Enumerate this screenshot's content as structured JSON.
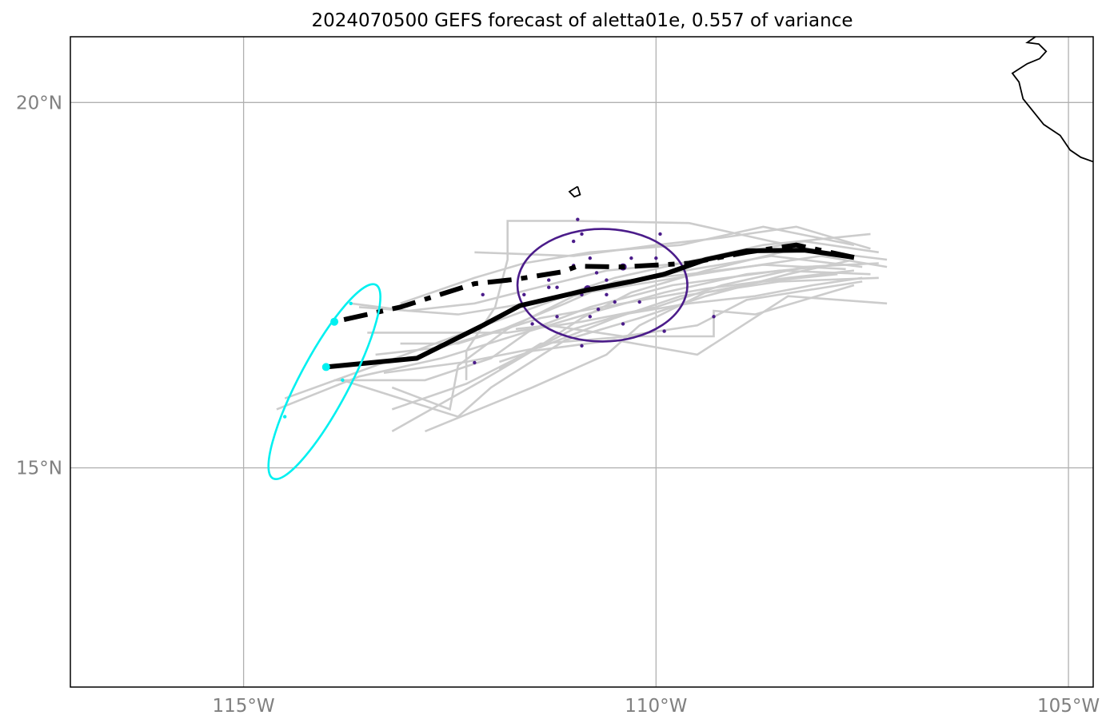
{
  "chart_data": {
    "type": "map-track",
    "title": "2024070500 GEFS forecast of aletta01e, 0.557 of variance",
    "projection": "PlateCarree",
    "xlim": [
      -117.1,
      -104.7
    ],
    "ylim": [
      12.0,
      20.9
    ],
    "lon_ticks": [
      {
        "value": -115,
        "label": "115°W"
      },
      {
        "value": -110,
        "label": "110°W"
      },
      {
        "value": -105,
        "label": "105°W"
      }
    ],
    "lat_ticks": [
      {
        "value": 20,
        "label": "20°N"
      },
      {
        "value": 15,
        "label": "15°N"
      }
    ],
    "grid": true,
    "colors": {
      "member": "#cccccc",
      "mid_points": "#4b1c8a",
      "end_points": "#00f0f0",
      "track": "#000000",
      "coast": "#000000",
      "grid": "#b0b0b0",
      "tick_label": "#808080"
    },
    "coastline": [
      [
        [
          -105.4,
          20.9
        ],
        [
          -105.5,
          20.82
        ],
        [
          -105.36,
          20.8
        ],
        [
          -105.27,
          20.7
        ],
        [
          -105.35,
          20.6
        ],
        [
          -105.5,
          20.53
        ],
        [
          -105.68,
          20.4
        ],
        [
          -105.6,
          20.28
        ],
        [
          -105.55,
          20.05
        ],
        [
          -105.3,
          19.7
        ],
        [
          -105.1,
          19.55
        ],
        [
          -104.98,
          19.35
        ],
        [
          -104.85,
          19.25
        ],
        [
          -104.7,
          19.19
        ]
      ]
    ],
    "islands": [
      [
        [
          -110.95,
          18.85
        ],
        [
          -111.05,
          18.78
        ],
        [
          -110.99,
          18.71
        ],
        [
          -110.92,
          18.74
        ],
        [
          -110.95,
          18.85
        ]
      ]
    ],
    "ensemble_mean_track": [
      [
        -107.6,
        17.88
      ],
      [
        -108.2,
        17.98
      ],
      [
        -108.9,
        17.97
      ],
      [
        -109.4,
        17.85
      ],
      [
        -109.9,
        17.65
      ],
      [
        -110.3,
        17.55
      ],
      [
        -110.85,
        17.43
      ],
      [
        -111.65,
        17.22
      ],
      [
        -112.1,
        16.95
      ],
      [
        -112.9,
        16.5
      ],
      [
        -114.0,
        16.38
      ]
    ],
    "forecast_track": [
      [
        -107.6,
        17.88
      ],
      [
        -108.3,
        18.05
      ],
      [
        -108.9,
        17.95
      ],
      [
        -109.6,
        17.8
      ],
      [
        -110.4,
        17.75
      ],
      [
        -110.95,
        17.76
      ],
      [
        -111.15,
        17.68
      ],
      [
        -111.7,
        17.58
      ],
      [
        -112.2,
        17.52
      ],
      [
        -113.1,
        17.2
      ],
      [
        -113.9,
        17.0
      ]
    ],
    "members": [
      [
        [
          -107.2,
          17.75
        ],
        [
          -108.0,
          17.9
        ],
        [
          -109.2,
          17.7
        ],
        [
          -110.3,
          17.5
        ],
        [
          -111.1,
          17.35
        ],
        [
          -112.2,
          16.9
        ],
        [
          -113.4,
          16.4
        ],
        [
          -114.5,
          15.95
        ]
      ],
      [
        [
          -107.3,
          17.95
        ],
        [
          -108.2,
          18.1
        ],
        [
          -109.5,
          17.85
        ],
        [
          -110.5,
          17.6
        ],
        [
          -111.3,
          17.3
        ],
        [
          -112.4,
          17.1
        ],
        [
          -113.6,
          17.2
        ]
      ],
      [
        [
          -107.4,
          17.65
        ],
        [
          -108.5,
          17.7
        ],
        [
          -109.8,
          17.5
        ],
        [
          -110.8,
          17.2
        ],
        [
          -111.5,
          16.9
        ],
        [
          -112.0,
          16.5
        ],
        [
          -112.8,
          16.2
        ],
        [
          -113.9,
          16.2
        ]
      ],
      [
        [
          -107.5,
          17.75
        ],
        [
          -108.6,
          17.9
        ],
        [
          -109.9,
          17.65
        ],
        [
          -111.0,
          17.35
        ],
        [
          -111.8,
          16.9
        ],
        [
          -112.4,
          16.4
        ],
        [
          -112.5,
          15.8
        ],
        [
          -113.2,
          16.1
        ]
      ],
      [
        [
          -107.6,
          18.05
        ],
        [
          -108.7,
          18.3
        ],
        [
          -109.7,
          18.05
        ],
        [
          -110.8,
          17.95
        ],
        [
          -111.6,
          17.8
        ],
        [
          -112.2,
          17.6
        ],
        [
          -113.1,
          17.25
        ]
      ],
      [
        [
          -107.7,
          17.9
        ],
        [
          -108.6,
          18.1
        ],
        [
          -109.6,
          18.35
        ],
        [
          -111.0,
          18.38
        ],
        [
          -111.8,
          18.38
        ],
        [
          -111.8,
          17.85
        ],
        [
          -111.95,
          17.2
        ],
        [
          -112.3,
          16.6
        ],
        [
          -112.3,
          16.2
        ]
      ],
      [
        [
          -107.8,
          17.78
        ],
        [
          -108.9,
          17.65
        ],
        [
          -109.9,
          17.4
        ],
        [
          -110.7,
          17.15
        ],
        [
          -111.6,
          16.85
        ],
        [
          -112.6,
          16.5
        ],
        [
          -113.6,
          16.25
        ],
        [
          -114.6,
          15.8
        ]
      ],
      [
        [
          -107.2,
          17.85
        ],
        [
          -108.3,
          18.0
        ],
        [
          -109.4,
          17.7
        ],
        [
          -110.3,
          17.4
        ],
        [
          -110.9,
          17.05
        ],
        [
          -111.5,
          16.6
        ],
        [
          -112.1,
          16.2
        ],
        [
          -113.2,
          15.5
        ]
      ],
      [
        [
          -107.6,
          17.7
        ],
        [
          -108.4,
          17.6
        ],
        [
          -109.4,
          17.45
        ],
        [
          -110.4,
          17.25
        ],
        [
          -111.4,
          17.05
        ],
        [
          -112.4,
          16.7
        ],
        [
          -113.1,
          16.7
        ]
      ],
      [
        [
          -107.3,
          17.6
        ],
        [
          -108.5,
          17.55
        ],
        [
          -109.7,
          17.35
        ],
        [
          -110.5,
          17.05
        ],
        [
          -111.4,
          16.65
        ],
        [
          -112.3,
          16.45
        ],
        [
          -113.3,
          16.3
        ]
      ],
      [
        [
          -107.4,
          18.0
        ],
        [
          -108.3,
          18.3
        ],
        [
          -109.2,
          18.15
        ],
        [
          -110.0,
          18.05
        ],
        [
          -111.0,
          17.9
        ],
        [
          -112.2,
          17.95
        ]
      ],
      [
        [
          -107.5,
          17.6
        ],
        [
          -108.1,
          17.5
        ],
        [
          -108.8,
          17.35
        ],
        [
          -109.6,
          17.25
        ],
        [
          -110.4,
          17.1
        ],
        [
          -111.0,
          16.9
        ],
        [
          -111.6,
          16.55
        ],
        [
          -112.3,
          16.15
        ],
        [
          -113.2,
          15.8
        ]
      ],
      [
        [
          -107.6,
          17.85
        ],
        [
          -108.4,
          17.65
        ],
        [
          -109.4,
          17.35
        ],
        [
          -110.2,
          17.05
        ],
        [
          -111.1,
          16.75
        ],
        [
          -112.0,
          16.1
        ],
        [
          -112.4,
          15.7
        ],
        [
          -113.8,
          16.2
        ]
      ],
      [
        [
          -107.7,
          17.72
        ],
        [
          -108.7,
          17.78
        ],
        [
          -109.6,
          17.65
        ],
        [
          -110.5,
          17.55
        ],
        [
          -111.1,
          17.25
        ],
        [
          -111.85,
          16.9
        ],
        [
          -112.6,
          16.65
        ],
        [
          -113.4,
          16.55
        ]
      ],
      [
        [
          -107.3,
          17.8
        ],
        [
          -108.2,
          17.75
        ],
        [
          -109.2,
          17.5
        ],
        [
          -110.0,
          17.2
        ],
        [
          -110.9,
          17.0
        ],
        [
          -111.8,
          16.85
        ],
        [
          -112.5,
          16.85
        ],
        [
          -113.5,
          16.85
        ]
      ],
      [
        [
          -107.4,
          18.2
        ],
        [
          -108.7,
          18.05
        ],
        [
          -109.7,
          17.8
        ],
        [
          -110.6,
          17.7
        ],
        [
          -111.5,
          17.45
        ],
        [
          -112.2,
          17.25
        ],
        [
          -113.0,
          17.15
        ],
        [
          -113.7,
          17.25
        ]
      ],
      [
        [
          -107.5,
          17.55
        ],
        [
          -108.9,
          17.3
        ],
        [
          -109.5,
          16.95
        ],
        [
          -110.4,
          16.8
        ],
        [
          -111.3,
          16.95
        ],
        [
          -111.7,
          16.9
        ]
      ],
      [
        [
          -107.2,
          17.25
        ],
        [
          -108.4,
          17.35
        ],
        [
          -109.5,
          16.55
        ],
        [
          -110.5,
          16.75
        ],
        [
          -111.5,
          16.6
        ],
        [
          -111.9,
          16.45
        ]
      ],
      [
        [
          -107.6,
          17.5
        ],
        [
          -108.8,
          17.1
        ],
        [
          -109.3,
          17.15
        ],
        [
          -109.3,
          16.8
        ],
        [
          -110.3,
          16.8
        ],
        [
          -111.4,
          16.7
        ],
        [
          -111.9,
          16.35
        ]
      ],
      [
        [
          -107.8,
          17.65
        ],
        [
          -108.7,
          17.55
        ],
        [
          -109.4,
          17.4
        ],
        [
          -110.2,
          16.95
        ],
        [
          -110.6,
          16.55
        ],
        [
          -111.5,
          16.1
        ],
        [
          -112.8,
          15.5
        ]
      ]
    ],
    "mid_points": [
      {
        "lon": -110.95,
        "lat": 18.4,
        "size": 1
      },
      {
        "lon": -110.9,
        "lat": 18.2,
        "size": 1
      },
      {
        "lon": -111.0,
        "lat": 18.1,
        "size": 1
      },
      {
        "lon": -109.95,
        "lat": 18.2,
        "size": 1
      },
      {
        "lon": -110.8,
        "lat": 17.87,
        "size": 1
      },
      {
        "lon": -110.3,
        "lat": 17.87,
        "size": 1
      },
      {
        "lon": -110.0,
        "lat": 17.87,
        "size": 1
      },
      {
        "lon": -111.0,
        "lat": 17.77,
        "size": 1
      },
      {
        "lon": -110.72,
        "lat": 17.67,
        "size": 1
      },
      {
        "lon": -111.3,
        "lat": 17.57,
        "size": 1
      },
      {
        "lon": -110.6,
        "lat": 17.57,
        "size": 1
      },
      {
        "lon": -111.3,
        "lat": 17.47,
        "size": 1
      },
      {
        "lon": -111.2,
        "lat": 17.47,
        "size": 1
      },
      {
        "lon": -112.1,
        "lat": 17.37,
        "size": 1
      },
      {
        "lon": -111.6,
        "lat": 17.37,
        "size": 1
      },
      {
        "lon": -110.9,
        "lat": 17.37,
        "size": 1
      },
      {
        "lon": -110.6,
        "lat": 17.37,
        "size": 1
      },
      {
        "lon": -110.5,
        "lat": 17.27,
        "size": 1
      },
      {
        "lon": -110.2,
        "lat": 17.27,
        "size": 1
      },
      {
        "lon": -110.7,
        "lat": 17.17,
        "size": 1
      },
      {
        "lon": -111.2,
        "lat": 17.07,
        "size": 1
      },
      {
        "lon": -110.8,
        "lat": 17.07,
        "size": 1
      },
      {
        "lon": -109.3,
        "lat": 17.07,
        "size": 1
      },
      {
        "lon": -111.5,
        "lat": 16.97,
        "size": 1
      },
      {
        "lon": -110.4,
        "lat": 16.97,
        "size": 1
      },
      {
        "lon": -109.9,
        "lat": 16.87,
        "size": 1
      },
      {
        "lon": -110.9,
        "lat": 16.67,
        "size": 1
      },
      {
        "lon": -112.2,
        "lat": 16.44,
        "size": 1
      },
      {
        "lon": -110.4,
        "lat": 17.75,
        "size": 2
      },
      {
        "lon": -110.83,
        "lat": 17.45,
        "size": 2
      }
    ],
    "mid_ellipse": {
      "center": [
        -110.65,
        17.5
      ],
      "half_width": 1.03,
      "half_height": 0.77,
      "angle_deg": 0
    },
    "end_points": [
      {
        "lon": -113.7,
        "lat": 17.25,
        "size": 1
      },
      {
        "lon": -113.8,
        "lat": 16.2,
        "size": 1
      },
      {
        "lon": -114.5,
        "lat": 15.7,
        "size": 1
      },
      {
        "lon": -113.9,
        "lat": 17.0,
        "size": 2
      },
      {
        "lon": -114.0,
        "lat": 16.38,
        "size": 2
      }
    ],
    "end_ellipse": {
      "center": [
        -114.02,
        16.18
      ],
      "half_width": 0.3,
      "half_height": 1.5,
      "angle_deg": 28
    }
  }
}
